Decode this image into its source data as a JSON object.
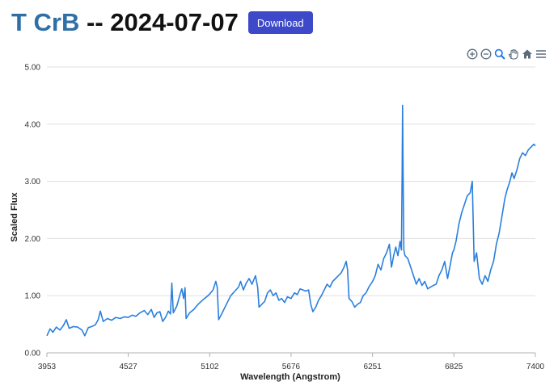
{
  "header": {
    "star_name": "T CrB",
    "date_text": " -- 2024-07-07",
    "download_label": "Download"
  },
  "toolbar": {
    "icons": [
      "zoom-in-icon",
      "zoom-out-icon",
      "zoom-selection-icon",
      "pan-hand-icon",
      "home-reset-icon",
      "menu-icon"
    ]
  },
  "colors": {
    "line": "#2a7fde",
    "grid": "#e0e0e0",
    "title_accent": "#2f6fa8",
    "button": "#3d49c8"
  },
  "chart_data": {
    "type": "line",
    "title": "",
    "xlabel": "Wavelength (Angstrom)",
    "ylabel": "Scaled Flux",
    "xlim": [
      3953,
      7400
    ],
    "ylim": [
      0,
      5
    ],
    "x_ticks": [
      3953,
      4527,
      5102,
      5676,
      6251,
      6825,
      7400
    ],
    "y_ticks": [
      "0.00",
      "1.00",
      "2.00",
      "3.00",
      "4.00",
      "5.00"
    ],
    "grid": "horizontal",
    "series": [
      {
        "color": "#2a7fde",
        "points": [
          [
            3953,
            0.3
          ],
          [
            3975,
            0.42
          ],
          [
            3995,
            0.36
          ],
          [
            4020,
            0.45
          ],
          [
            4045,
            0.4
          ],
          [
            4070,
            0.48
          ],
          [
            4090,
            0.58
          ],
          [
            4110,
            0.43
          ],
          [
            4140,
            0.46
          ],
          [
            4170,
            0.45
          ],
          [
            4200,
            0.4
          ],
          [
            4220,
            0.3
          ],
          [
            4245,
            0.44
          ],
          [
            4270,
            0.46
          ],
          [
            4295,
            0.49
          ],
          [
            4315,
            0.58
          ],
          [
            4330,
            0.73
          ],
          [
            4350,
            0.55
          ],
          [
            4380,
            0.6
          ],
          [
            4410,
            0.57
          ],
          [
            4440,
            0.62
          ],
          [
            4470,
            0.6
          ],
          [
            4500,
            0.63
          ],
          [
            4527,
            0.62
          ],
          [
            4555,
            0.66
          ],
          [
            4580,
            0.64
          ],
          [
            4610,
            0.7
          ],
          [
            4640,
            0.74
          ],
          [
            4665,
            0.67
          ],
          [
            4690,
            0.76
          ],
          [
            4710,
            0.62
          ],
          [
            4730,
            0.7
          ],
          [
            4750,
            0.72
          ],
          [
            4770,
            0.55
          ],
          [
            4790,
            0.62
          ],
          [
            4810,
            0.73
          ],
          [
            4825,
            0.68
          ],
          [
            4835,
            1.22
          ],
          [
            4845,
            0.7
          ],
          [
            4870,
            0.82
          ],
          [
            4890,
            1.0
          ],
          [
            4905,
            1.12
          ],
          [
            4918,
            0.95
          ],
          [
            4928,
            1.14
          ],
          [
            4935,
            0.6
          ],
          [
            4960,
            0.7
          ],
          [
            4990,
            0.76
          ],
          [
            5020,
            0.85
          ],
          [
            5050,
            0.92
          ],
          [
            5080,
            0.98
          ],
          [
            5102,
            1.03
          ],
          [
            5125,
            1.1
          ],
          [
            5145,
            1.25
          ],
          [
            5155,
            1.15
          ],
          [
            5165,
            0.58
          ],
          [
            5190,
            0.7
          ],
          [
            5220,
            0.85
          ],
          [
            5250,
            1.0
          ],
          [
            5280,
            1.08
          ],
          [
            5305,
            1.15
          ],
          [
            5320,
            1.25
          ],
          [
            5340,
            1.1
          ],
          [
            5360,
            1.22
          ],
          [
            5380,
            1.3
          ],
          [
            5400,
            1.2
          ],
          [
            5425,
            1.35
          ],
          [
            5440,
            1.15
          ],
          [
            5450,
            0.8
          ],
          [
            5470,
            0.85
          ],
          [
            5490,
            0.9
          ],
          [
            5510,
            1.05
          ],
          [
            5530,
            1.1
          ],
          [
            5550,
            1.0
          ],
          [
            5570,
            1.05
          ],
          [
            5590,
            0.92
          ],
          [
            5610,
            0.95
          ],
          [
            5630,
            0.88
          ],
          [
            5650,
            0.98
          ],
          [
            5676,
            0.95
          ],
          [
            5700,
            1.05
          ],
          [
            5720,
            1.02
          ],
          [
            5740,
            1.12
          ],
          [
            5760,
            1.1
          ],
          [
            5780,
            1.08
          ],
          [
            5800,
            1.1
          ],
          [
            5815,
            0.85
          ],
          [
            5830,
            0.72
          ],
          [
            5850,
            0.8
          ],
          [
            5870,
            0.92
          ],
          [
            5890,
            1.0
          ],
          [
            5910,
            1.1
          ],
          [
            5930,
            1.2
          ],
          [
            5950,
            1.15
          ],
          [
            5970,
            1.25
          ],
          [
            5990,
            1.3
          ],
          [
            6010,
            1.35
          ],
          [
            6030,
            1.4
          ],
          [
            6050,
            1.5
          ],
          [
            6065,
            1.6
          ],
          [
            6075,
            1.45
          ],
          [
            6085,
            0.95
          ],
          [
            6105,
            0.9
          ],
          [
            6125,
            0.8
          ],
          [
            6145,
            0.85
          ],
          [
            6165,
            0.88
          ],
          [
            6185,
            1.0
          ],
          [
            6205,
            1.05
          ],
          [
            6225,
            1.15
          ],
          [
            6251,
            1.25
          ],
          [
            6270,
            1.35
          ],
          [
            6290,
            1.55
          ],
          [
            6310,
            1.45
          ],
          [
            6330,
            1.65
          ],
          [
            6350,
            1.75
          ],
          [
            6370,
            1.9
          ],
          [
            6385,
            1.5
          ],
          [
            6400,
            1.7
          ],
          [
            6415,
            1.85
          ],
          [
            6430,
            1.7
          ],
          [
            6445,
            1.95
          ],
          [
            6455,
            1.8
          ],
          [
            6460,
            3.2
          ],
          [
            6463,
            4.33
          ],
          [
            6467,
            3.1
          ],
          [
            6472,
            1.8
          ],
          [
            6480,
            1.7
          ],
          [
            6500,
            1.65
          ],
          [
            6520,
            1.5
          ],
          [
            6540,
            1.35
          ],
          [
            6560,
            1.2
          ],
          [
            6580,
            1.3
          ],
          [
            6600,
            1.18
          ],
          [
            6620,
            1.25
          ],
          [
            6640,
            1.12
          ],
          [
            6660,
            1.15
          ],
          [
            6680,
            1.18
          ],
          [
            6700,
            1.2
          ],
          [
            6720,
            1.35
          ],
          [
            6740,
            1.45
          ],
          [
            6760,
            1.6
          ],
          [
            6780,
            1.3
          ],
          [
            6800,
            1.55
          ],
          [
            6815,
            1.75
          ],
          [
            6825,
            1.8
          ],
          [
            6840,
            1.95
          ],
          [
            6860,
            2.25
          ],
          [
            6880,
            2.45
          ],
          [
            6900,
            2.6
          ],
          [
            6920,
            2.75
          ],
          [
            6940,
            2.8
          ],
          [
            6955,
            3.0
          ],
          [
            6962,
            2.2
          ],
          [
            6968,
            1.6
          ],
          [
            6985,
            1.75
          ],
          [
            7005,
            1.3
          ],
          [
            7025,
            1.2
          ],
          [
            7045,
            1.35
          ],
          [
            7065,
            1.25
          ],
          [
            7085,
            1.45
          ],
          [
            7105,
            1.6
          ],
          [
            7125,
            1.9
          ],
          [
            7145,
            2.1
          ],
          [
            7165,
            2.4
          ],
          [
            7185,
            2.7
          ],
          [
            7200,
            2.85
          ],
          [
            7220,
            3.0
          ],
          [
            7235,
            3.15
          ],
          [
            7250,
            3.05
          ],
          [
            7270,
            3.2
          ],
          [
            7290,
            3.4
          ],
          [
            7310,
            3.5
          ],
          [
            7330,
            3.45
          ],
          [
            7350,
            3.55
          ],
          [
            7370,
            3.6
          ],
          [
            7390,
            3.65
          ],
          [
            7400,
            3.62
          ]
        ]
      }
    ]
  }
}
